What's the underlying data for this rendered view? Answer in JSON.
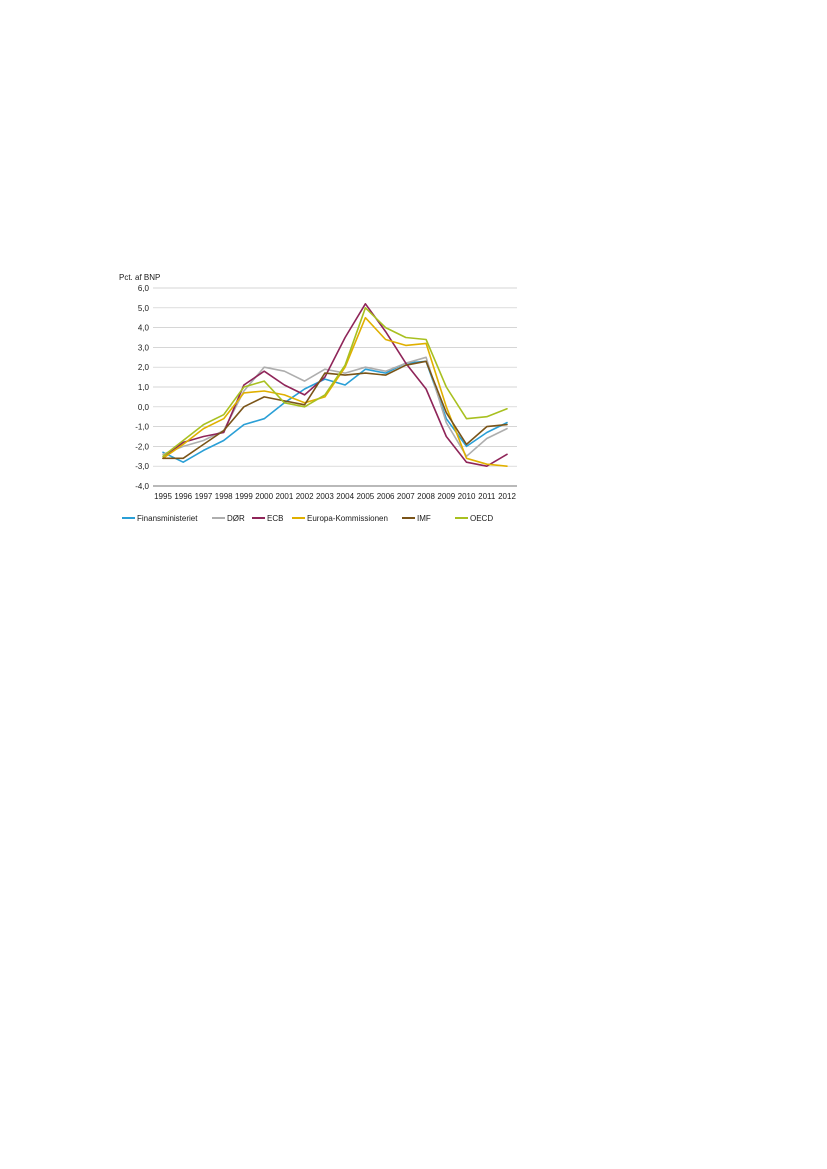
{
  "chart_data": {
    "type": "line",
    "ylabel": "Pct. af BNP",
    "ylim": [
      -4,
      6
    ],
    "yticks": [
      "6,0",
      "5,0",
      "4,0",
      "3,0",
      "2,0",
      "1,0",
      "0,0",
      "-1,0",
      "-2,0",
      "-3,0",
      "-4,0"
    ],
    "ytick_values": [
      6,
      5,
      4,
      3,
      2,
      1,
      0,
      -1,
      -2,
      -3,
      -4
    ],
    "categories": [
      "1995",
      "1996",
      "1997",
      "1998",
      "1999",
      "2000",
      "2001",
      "2002",
      "2003",
      "2004",
      "2005",
      "2006",
      "2007",
      "2008",
      "2009",
      "2010",
      "2011",
      "2012"
    ],
    "grid": true,
    "legend_position": "bottom",
    "series": [
      {
        "name": "Finansministeriet",
        "color": "#2a9fd6",
        "values": [
          -2.3,
          -2.8,
          -2.2,
          -1.7,
          -0.9,
          -0.6,
          0.2,
          0.9,
          1.4,
          1.1,
          1.9,
          1.7,
          2.2,
          2.3,
          -0.6,
          -2.0,
          -1.3,
          -0.8
        ]
      },
      {
        "name": "DØR",
        "color": "#aeaeae",
        "values": [
          -2.4,
          -2.0,
          -1.7,
          -1.2,
          0.8,
          2.0,
          1.8,
          1.3,
          1.9,
          1.7,
          2.0,
          1.8,
          2.2,
          2.5,
          -0.8,
          -2.5,
          -1.6,
          -1.1
        ]
      },
      {
        "name": "ECB",
        "color": "#8f2559",
        "values": [
          -2.6,
          -1.8,
          -1.5,
          -1.3,
          1.1,
          1.8,
          1.1,
          0.6,
          1.5,
          3.5,
          5.2,
          3.8,
          2.2,
          0.9,
          -1.5,
          -2.8,
          -3.0,
          -2.4
        ]
      },
      {
        "name": "Europa-Kommissionen",
        "color": "#e0b000",
        "values": [
          -2.6,
          -1.9,
          -1.1,
          -0.6,
          0.7,
          0.8,
          0.6,
          0.2,
          0.5,
          2.0,
          4.5,
          3.4,
          3.1,
          3.2,
          0.0,
          -2.6,
          -2.9,
          -3.0
        ]
      },
      {
        "name": "IMF",
        "color": "#7a5418",
        "values": [
          -2.6,
          -2.6,
          -1.9,
          -1.2,
          0.0,
          0.5,
          0.3,
          0.1,
          1.7,
          1.6,
          1.7,
          1.6,
          2.1,
          2.3,
          -0.3,
          -1.9,
          -1.0,
          -0.9
        ]
      },
      {
        "name": "OECD",
        "color": "#a8c020",
        "values": [
          -2.5,
          -1.7,
          -0.9,
          -0.4,
          1.0,
          1.3,
          0.2,
          0.0,
          0.6,
          2.1,
          5.0,
          4.0,
          3.5,
          3.4,
          1.0,
          -0.6,
          -0.5,
          -0.1
        ]
      }
    ]
  }
}
